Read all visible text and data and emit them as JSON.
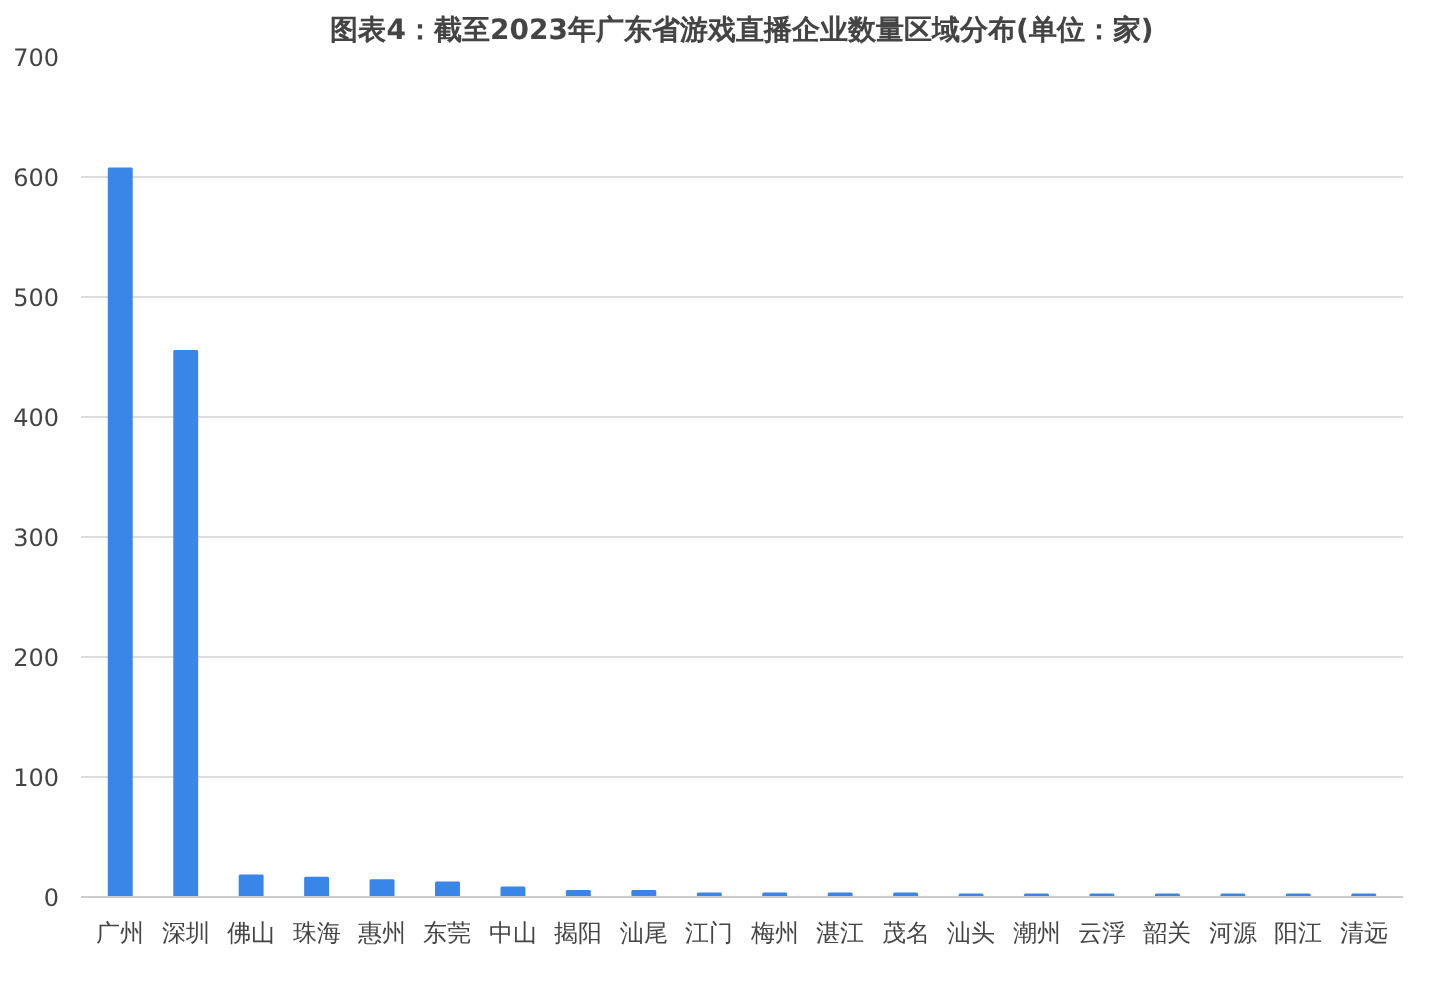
{
  "chart_data": {
    "type": "bar",
    "title": "图表4：截至2023年广东省游戏直播企业数量区域分布(单位：家)",
    "categories": [
      "广州",
      "深圳",
      "佛山",
      "珠海",
      "惠州",
      "东莞",
      "中山",
      "揭阳",
      "汕尾",
      "江门",
      "梅州",
      "湛江",
      "茂名",
      "汕头",
      "潮州",
      "云浮",
      "韶关",
      "河源",
      "阳江",
      "清远"
    ],
    "values": [
      607,
      455,
      18,
      16,
      14,
      12,
      8,
      5,
      5,
      3,
      3,
      3,
      3,
      2,
      2,
      2,
      2,
      2,
      2,
      2
    ],
    "color": "#3a86e8",
    "ylim": [
      0,
      700
    ],
    "yticks": [
      0,
      100,
      200,
      300,
      400,
      500,
      600,
      700
    ],
    "grid": "y"
  }
}
